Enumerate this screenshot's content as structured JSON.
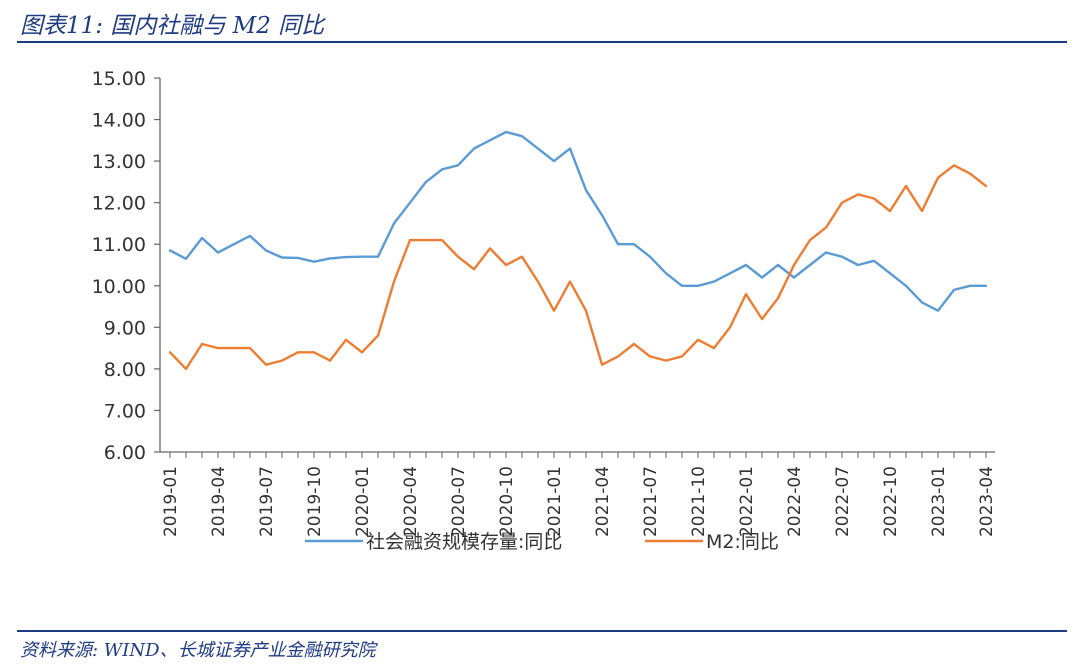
{
  "header": {
    "title": "图表11:  国内社融与 M2 同比"
  },
  "footer": {
    "source": "资料来源:  WIND、长城证券产业金融研究院"
  },
  "colors": {
    "series1": "#5b9bd5",
    "series2": "#ed7d31",
    "accent": "#1f3b82",
    "axis": "#666666"
  },
  "chart_data": {
    "type": "line",
    "x": [
      "2019-01",
      "2019-02",
      "2019-03",
      "2019-04",
      "2019-05",
      "2019-06",
      "2019-07",
      "2019-08",
      "2019-09",
      "2019-10",
      "2019-11",
      "2019-12",
      "2020-01",
      "2020-02",
      "2020-03",
      "2020-04",
      "2020-05",
      "2020-06",
      "2020-07",
      "2020-08",
      "2020-09",
      "2020-10",
      "2020-11",
      "2020-12",
      "2021-01",
      "2021-02",
      "2021-03",
      "2021-04",
      "2021-05",
      "2021-06",
      "2021-07",
      "2021-08",
      "2021-09",
      "2021-10",
      "2021-11",
      "2021-12",
      "2022-01",
      "2022-02",
      "2022-03",
      "2022-04",
      "2022-05",
      "2022-06",
      "2022-07",
      "2022-08",
      "2022-09",
      "2022-10",
      "2022-11",
      "2022-12",
      "2023-01",
      "2023-02",
      "2023-03",
      "2023-04"
    ],
    "tick_labels": [
      "2019-01",
      "2019-04",
      "2019-07",
      "2019-10",
      "2020-01",
      "2020-04",
      "2020-07",
      "2020-10",
      "2021-01",
      "2021-04",
      "2021-07",
      "2021-10",
      "2022-01",
      "2022-04",
      "2022-07",
      "2022-10",
      "2023-01",
      "2023-04"
    ],
    "y_ticks": [
      "6.00",
      "7.00",
      "8.00",
      "9.00",
      "10.00",
      "11.00",
      "12.00",
      "13.00",
      "14.00",
      "15.00"
    ],
    "ylim": [
      6,
      15
    ],
    "grid": false,
    "legend_position": "bottom",
    "series": [
      {
        "name": "社会融资规模存量:同比",
        "values": [
          10.85,
          10.65,
          11.15,
          10.8,
          11.0,
          11.2,
          10.85,
          10.68,
          10.67,
          10.58,
          10.66,
          10.69,
          10.7,
          10.7,
          11.5,
          12.0,
          12.5,
          12.8,
          12.9,
          13.3,
          13.5,
          13.7,
          13.6,
          13.3,
          13.0,
          13.3,
          12.3,
          11.7,
          11.0,
          11.0,
          10.7,
          10.3,
          10.0,
          10.0,
          10.1,
          10.3,
          10.5,
          10.2,
          10.5,
          10.2,
          10.5,
          10.8,
          10.7,
          10.5,
          10.6,
          10.3,
          10.0,
          9.6,
          9.4,
          9.9,
          10.0,
          10.0
        ]
      },
      {
        "name": "M2:同比",
        "values": [
          8.4,
          8.0,
          8.6,
          8.5,
          8.5,
          8.5,
          8.1,
          8.2,
          8.4,
          8.4,
          8.2,
          8.7,
          8.4,
          8.8,
          10.1,
          11.1,
          11.1,
          11.1,
          10.7,
          10.4,
          10.9,
          10.5,
          10.7,
          10.1,
          9.4,
          10.1,
          9.4,
          8.1,
          8.3,
          8.6,
          8.3,
          8.2,
          8.3,
          8.7,
          8.5,
          9.0,
          9.8,
          9.2,
          9.7,
          10.5,
          11.1,
          11.4,
          12.0,
          12.2,
          12.1,
          11.8,
          12.4,
          11.8,
          12.6,
          12.9,
          12.7,
          12.4
        ]
      }
    ]
  }
}
